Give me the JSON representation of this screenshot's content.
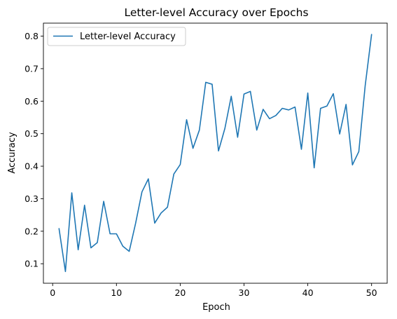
{
  "chart_data": {
    "type": "line",
    "title": "Letter-level Accuracy over Epochs",
    "xlabel": "Epoch",
    "ylabel": "Accuracy",
    "xlim": [
      -1.45,
      52.45
    ],
    "ylim": [
      0.04,
      0.84
    ],
    "xticks": [
      0,
      10,
      20,
      30,
      40,
      50
    ],
    "yticks": [
      0.1,
      0.2,
      0.3,
      0.4,
      0.5,
      0.6,
      0.7,
      0.8
    ],
    "grid": false,
    "legend_position": "upper-left",
    "series": [
      {
        "name": "Letter-level Accuracy",
        "color": "#1f77b4",
        "x": [
          1,
          2,
          3,
          4,
          5,
          6,
          7,
          8,
          9,
          10,
          11,
          12,
          13,
          14,
          15,
          16,
          17,
          18,
          19,
          20,
          21,
          22,
          23,
          24,
          25,
          26,
          27,
          28,
          29,
          30,
          31,
          32,
          33,
          34,
          35,
          36,
          37,
          38,
          39,
          40,
          41,
          42,
          43,
          44,
          45,
          46,
          47,
          48,
          49,
          50
        ],
        "y": [
          0.208,
          0.076,
          0.318,
          0.143,
          0.28,
          0.149,
          0.165,
          0.292,
          0.192,
          0.192,
          0.154,
          0.138,
          0.224,
          0.321,
          0.361,
          0.225,
          0.256,
          0.274,
          0.376,
          0.405,
          0.543,
          0.455,
          0.511,
          0.658,
          0.652,
          0.447,
          0.516,
          0.615,
          0.489,
          0.622,
          0.63,
          0.511,
          0.575,
          0.546,
          0.556,
          0.578,
          0.573,
          0.582,
          0.452,
          0.625,
          0.395,
          0.578,
          0.585,
          0.623,
          0.499,
          0.59,
          0.404,
          0.445,
          0.648,
          0.805
        ]
      }
    ]
  }
}
